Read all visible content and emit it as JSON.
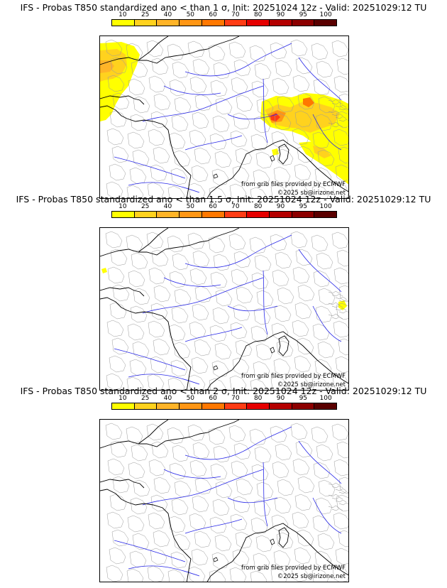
{
  "colorbar": {
    "ticks": [
      "10",
      "25",
      "40",
      "50",
      "60",
      "70",
      "80",
      "90",
      "95",
      "100"
    ],
    "colors": [
      "#ffff00",
      "#ffd21e",
      "#ffb428",
      "#ff9614",
      "#ff7800",
      "#ff3c14",
      "#e60000",
      "#b40000",
      "#8c0000",
      "#5a0000"
    ]
  },
  "panels": [
    {
      "title": "IFS - Probas T850  standardized ano < than 1 σ, Init: 20251024 12z - Valid: 20251029:12 TU",
      "source_credit": "from grib files provided by ECMWF",
      "copyright": "©2025 sb@irizone.net",
      "signal": "strong"
    },
    {
      "title": "IFS - Probas T850  standardized ano < than 1.5 σ, Init: 20251024 12z - Valid: 20251029:12 TU",
      "source_credit": "from grib files provided by ECMWF",
      "copyright": "©2025 sb@irizone.net",
      "signal": "weak"
    },
    {
      "title": "IFS - Probas T850  standardized ano < than 2 σ, Init: 20251024 12z - Valid: 20251029:12 TU",
      "source_credit": "from grib files provided by ECMWF",
      "copyright": "©2025 sb@irizone.net",
      "signal": "none"
    }
  ]
}
